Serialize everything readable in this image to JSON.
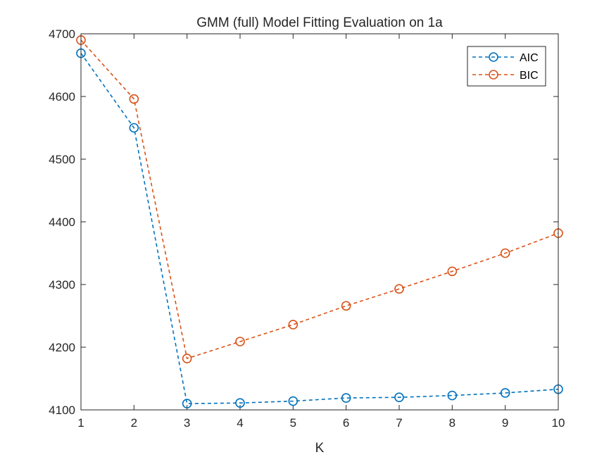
{
  "chart_data": {
    "type": "line",
    "title": "GMM (full) Model Fitting Evaluation on 1a",
    "xlabel": "K",
    "ylabel": "",
    "x": [
      1,
      2,
      3,
      4,
      5,
      6,
      7,
      8,
      9,
      10
    ],
    "xlim": [
      1,
      10
    ],
    "ylim": [
      4100,
      4700
    ],
    "xticks": [
      "1",
      "2",
      "3",
      "4",
      "5",
      "6",
      "7",
      "8",
      "9",
      "10"
    ],
    "yticks": [
      "4100",
      "4200",
      "4300",
      "4400",
      "4500",
      "4600",
      "4700"
    ],
    "grid": false,
    "legend_position": "top-right",
    "series": [
      {
        "name": "AIC",
        "color": "#0072BD",
        "line_style": "dashed",
        "marker": "circle",
        "values": [
          4669,
          4550,
          4110,
          4111,
          4114,
          4119,
          4120,
          4123,
          4127,
          4133
        ]
      },
      {
        "name": "BIC",
        "color": "#D95319",
        "line_style": "dashed",
        "marker": "circle",
        "values": [
          4690,
          4596,
          4182,
          4209,
          4236,
          4266,
          4293,
          4321,
          4350,
          4382
        ]
      }
    ]
  }
}
